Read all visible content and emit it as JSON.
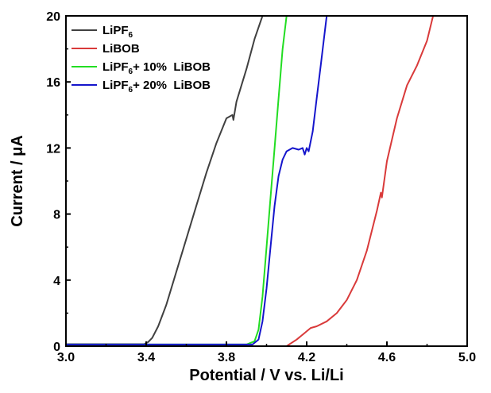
{
  "chart_data": {
    "type": "line",
    "title": "",
    "xlabel": "Potential / V vs. Li/Li",
    "ylabel": "Current / μA",
    "xlim": [
      3.0,
      5.0
    ],
    "ylim": [
      0,
      20
    ],
    "xticks": [
      "3.0",
      "3.4",
      "3.8",
      "4.2",
      "4.6",
      "5.0"
    ],
    "yticks": [
      "0",
      "4",
      "8",
      "12",
      "16",
      "20"
    ],
    "grid": false,
    "legend_position": "top-left",
    "series": [
      {
        "name": "LiPF6",
        "legend_main": "LiPF",
        "legend_sub": "6",
        "legend_tail": "",
        "color": "#404040",
        "points": [
          [
            3.0,
            0.12
          ],
          [
            3.3,
            0.12
          ],
          [
            3.39,
            0.12
          ],
          [
            3.41,
            0.25
          ],
          [
            3.43,
            0.5
          ],
          [
            3.46,
            1.2
          ],
          [
            3.5,
            2.5
          ],
          [
            3.55,
            4.5
          ],
          [
            3.6,
            6.5
          ],
          [
            3.65,
            8.5
          ],
          [
            3.7,
            10.5
          ],
          [
            3.75,
            12.3
          ],
          [
            3.8,
            13.8
          ],
          [
            3.83,
            14.0
          ],
          [
            3.835,
            13.7
          ],
          [
            3.85,
            14.8
          ],
          [
            3.9,
            16.8
          ],
          [
            3.94,
            18.6
          ],
          [
            3.98,
            20.0
          ]
        ]
      },
      {
        "name": "LiBOB",
        "legend_main": "LiBOB",
        "legend_sub": "",
        "legend_tail": "",
        "color": "#d93a3a",
        "points": [
          [
            4.1,
            0.0
          ],
          [
            4.15,
            0.4
          ],
          [
            4.19,
            0.8
          ],
          [
            4.22,
            1.1
          ],
          [
            4.25,
            1.2
          ],
          [
            4.3,
            1.5
          ],
          [
            4.35,
            2.0
          ],
          [
            4.4,
            2.8
          ],
          [
            4.45,
            4.0
          ],
          [
            4.5,
            5.8
          ],
          [
            4.55,
            8.2
          ],
          [
            4.57,
            9.3
          ],
          [
            4.575,
            9.0
          ],
          [
            4.6,
            11.2
          ],
          [
            4.65,
            13.8
          ],
          [
            4.7,
            15.8
          ],
          [
            4.75,
            17.0
          ],
          [
            4.8,
            18.5
          ],
          [
            4.83,
            20.0
          ]
        ]
      },
      {
        "name": "LiPF6 + 10% LiBOB",
        "legend_main": "LiPF",
        "legend_sub": "6",
        "legend_tail": "+ 10%  LiBOB",
        "color": "#22dd22",
        "points": [
          [
            3.0,
            0.1
          ],
          [
            3.9,
            0.1
          ],
          [
            3.94,
            0.3
          ],
          [
            3.96,
            1.0
          ],
          [
            3.98,
            3.0
          ],
          [
            4.0,
            6.0
          ],
          [
            4.02,
            9.0
          ],
          [
            4.04,
            12.0
          ],
          [
            4.06,
            15.0
          ],
          [
            4.08,
            18.0
          ],
          [
            4.1,
            20.0
          ]
        ]
      },
      {
        "name": "LiPF6 + 20% LiBOB",
        "legend_main": "LiPF",
        "legend_sub": "6",
        "legend_tail": "+ 20%  LiBOB",
        "color": "#1515cc",
        "points": [
          [
            3.0,
            0.1
          ],
          [
            3.93,
            0.1
          ],
          [
            3.96,
            0.4
          ],
          [
            3.98,
            1.5
          ],
          [
            4.0,
            3.5
          ],
          [
            4.02,
            6.0
          ],
          [
            4.04,
            8.5
          ],
          [
            4.06,
            10.3
          ],
          [
            4.08,
            11.3
          ],
          [
            4.1,
            11.8
          ],
          [
            4.13,
            12.0
          ],
          [
            4.16,
            11.9
          ],
          [
            4.18,
            12.0
          ],
          [
            4.19,
            11.6
          ],
          [
            4.2,
            12.0
          ],
          [
            4.21,
            11.8
          ],
          [
            4.23,
            13.0
          ],
          [
            4.25,
            15.0
          ],
          [
            4.27,
            17.0
          ],
          [
            4.29,
            19.0
          ],
          [
            4.3,
            20.0
          ]
        ]
      }
    ]
  }
}
